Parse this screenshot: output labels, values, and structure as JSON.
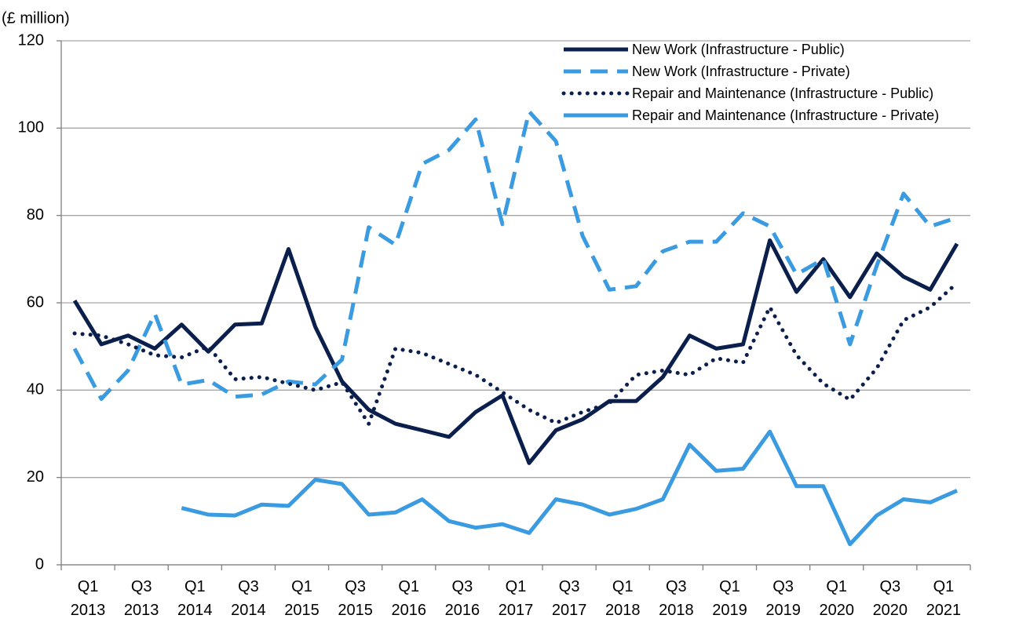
{
  "chart_data": {
    "type": "line",
    "y_label": "(£ million)",
    "categories": [
      "Q1 2013",
      null,
      "Q3 2013",
      null,
      "Q1 2014",
      null,
      "Q3 2014",
      null,
      "Q1 2015",
      null,
      "Q3 2015",
      null,
      "Q1 2016",
      null,
      "Q3 2016",
      null,
      "Q1 2017",
      null,
      "Q3 2017",
      null,
      "Q1 2018",
      null,
      "Q3 2018",
      null,
      "Q1 2019",
      null,
      "Q3 2019",
      null,
      "Q1 2020",
      null,
      "Q3 2020",
      null,
      "Q1 2021",
      null
    ],
    "ylim": [
      0,
      120
    ],
    "yticks": [
      0,
      20,
      40,
      60,
      80,
      100,
      120
    ],
    "grid": true,
    "legend": "upper right",
    "series": [
      {
        "name": "New Work (Infrastructure - Public)",
        "color": "#0b1f4d",
        "style": "solid",
        "values": [
          60.5,
          50.5,
          52.5,
          49.5,
          55,
          48.8,
          55,
          55.3,
          72.3,
          54.5,
          42,
          35.5,
          32.3,
          30.8,
          29.3,
          35,
          38.8,
          23.3,
          30.8,
          33.3,
          37.5,
          37.5,
          43,
          52.5,
          49.5,
          50.5,
          74.3,
          62.5,
          70,
          61.3,
          71.3,
          66,
          63,
          73.5
        ]
      },
      {
        "name": "New Work (Infrastructure - Private)",
        "color": "#3b9be0",
        "style": "dashed",
        "values": [
          49.5,
          38,
          44.5,
          57.5,
          41.3,
          42.3,
          38.5,
          39,
          42,
          41.3,
          47,
          77.3,
          73.3,
          91.8,
          95,
          102,
          78,
          103.8,
          97,
          75.3,
          63,
          63.8,
          71.8,
          74,
          74,
          80.5,
          77.5,
          66.5,
          70,
          50.5,
          68.5,
          85,
          77.5,
          79.5
        ]
      },
      {
        "name": "Repair and Maintenance (Infrastructure - Public)",
        "color": "#0b1f4d",
        "style": "dotted",
        "values": [
          53,
          52.5,
          50.5,
          48,
          47.5,
          50,
          42.5,
          43,
          41.5,
          40,
          41.8,
          32.3,
          49.5,
          48.5,
          46,
          43.5,
          39.5,
          35.5,
          32.5,
          35,
          37,
          43.5,
          44.5,
          43.5,
          47.3,
          46.3,
          59,
          48,
          41.5,
          37.8,
          45,
          56,
          59,
          64.5
        ]
      },
      {
        "name": "Repair and Maintenance (Infrastructure - Private)",
        "color": "#3b9be0",
        "style": "solid",
        "values": [
          null,
          null,
          null,
          null,
          13,
          11.5,
          11.3,
          13.8,
          13.5,
          19.5,
          18.5,
          11.5,
          12,
          15,
          10,
          8.5,
          9.3,
          7.3,
          15,
          13.8,
          11.5,
          12.8,
          15,
          27.5,
          21.5,
          22,
          30.5,
          18,
          18,
          4.7,
          11.3,
          15,
          14.3,
          17
        ]
      }
    ]
  }
}
